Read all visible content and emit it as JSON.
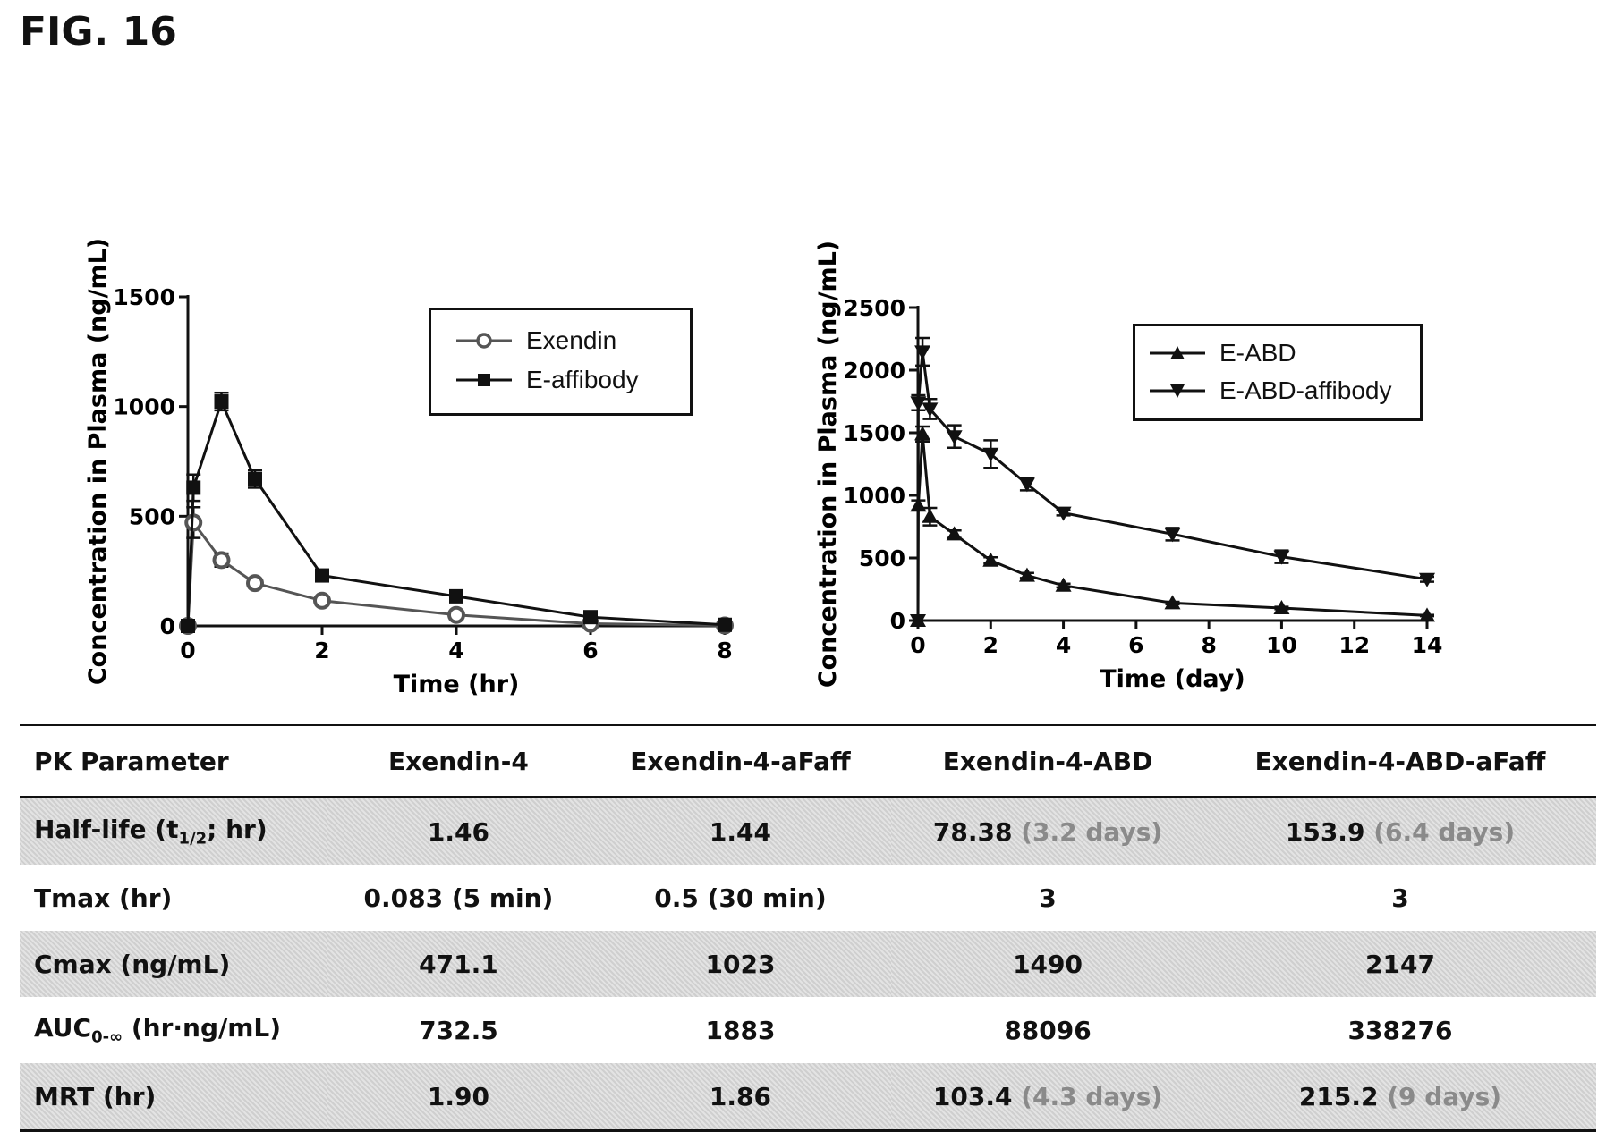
{
  "figure": {
    "title": "FIG. 16"
  },
  "chart_data": [
    {
      "type": "line",
      "xlabel": "Time (hr)",
      "ylabel": "Concentration in Plasma (ng/mL)",
      "xlim": [
        0,
        8
      ],
      "ylim": [
        0,
        1500
      ],
      "xticks": [
        0,
        2,
        4,
        6,
        8
      ],
      "yticks": [
        0,
        500,
        1000,
        1500
      ],
      "legend_placement": "top-right",
      "grid": false,
      "series": [
        {
          "name": "Exendin",
          "marker": "open-circle",
          "color": "#555555",
          "x": [
            0,
            0.083,
            0.5,
            1,
            2,
            4,
            6,
            8
          ],
          "y": [
            0,
            471.1,
            300,
            195,
            115,
            50,
            10,
            2
          ],
          "err": [
            0,
            70,
            30,
            20,
            15,
            10,
            5,
            2
          ]
        },
        {
          "name": "E-affibody",
          "marker": "filled-square",
          "color": "#111111",
          "x": [
            0,
            0.083,
            0.5,
            1,
            2,
            4,
            6,
            8
          ],
          "y": [
            0,
            630,
            1023,
            670,
            230,
            135,
            40,
            5
          ],
          "err": [
            0,
            60,
            40,
            40,
            15,
            10,
            8,
            2
          ]
        }
      ]
    },
    {
      "type": "line",
      "xlabel": "Time (day)",
      "ylabel": "Concentration in Plasma (ng/mL)",
      "xlim": [
        0,
        14
      ],
      "ylim": [
        0,
        2500
      ],
      "xticks": [
        0,
        2,
        4,
        6,
        8,
        10,
        12,
        14
      ],
      "yticks": [
        0,
        500,
        1000,
        1500,
        2000,
        2500
      ],
      "legend_placement": "top-right",
      "grid": false,
      "series": [
        {
          "name": "E-ABD",
          "marker": "filled-triangle-up",
          "color": "#111111",
          "x": [
            0,
            0.01,
            0.125,
            0.33,
            1,
            2,
            3,
            4,
            7,
            10,
            14
          ],
          "y": [
            0,
            920,
            1490,
            830,
            690,
            480,
            360,
            280,
            140,
            100,
            40
          ],
          "err": [
            0,
            40,
            60,
            70,
            30,
            25,
            20,
            15,
            10,
            10,
            5
          ]
        },
        {
          "name": "E-ABD-affibody",
          "marker": "filled-triangle-down",
          "color": "#111111",
          "x": [
            0,
            0.01,
            0.125,
            0.33,
            1,
            2,
            3,
            4,
            7,
            10,
            14
          ],
          "y": [
            0,
            1740,
            2147,
            1690,
            1470,
            1330,
            1090,
            860,
            690,
            510,
            330
          ],
          "err": [
            0,
            60,
            110,
            80,
            90,
            110,
            50,
            20,
            50,
            50,
            20
          ]
        }
      ]
    }
  ],
  "table": {
    "headers": [
      "PK Parameter",
      "Exendin-4",
      "Exendin-4-aFaff",
      "Exendin-4-ABD",
      "Exendin-4-ABD-aFaff"
    ],
    "rows": [
      {
        "label_main": "Half-life  (t",
        "label_sub": "1/2",
        "label_tail": "; hr)",
        "cells": [
          {
            "v": "1.46"
          },
          {
            "v": "1.44"
          },
          {
            "v": "78.38",
            "note": "(3.2 days)"
          },
          {
            "v": "153.9",
            "note": "(6.4 days)"
          }
        ]
      },
      {
        "label_main": "Tmax (hr)",
        "label_sub": "",
        "label_tail": "",
        "cells": [
          {
            "v": "0.083  (5 min)"
          },
          {
            "v": "0.5  (30 min)"
          },
          {
            "v": "3"
          },
          {
            "v": "3"
          }
        ]
      },
      {
        "label_main": "Cmax (ng/mL)",
        "label_sub": "",
        "label_tail": "",
        "cells": [
          {
            "v": "471.1"
          },
          {
            "v": "1023"
          },
          {
            "v": "1490"
          },
          {
            "v": "2147"
          }
        ]
      },
      {
        "label_main": "AUC",
        "label_sub": "0-∞",
        "label_tail": " (hr·ng/mL)",
        "cells": [
          {
            "v": "732.5"
          },
          {
            "v": "1883"
          },
          {
            "v": "88096"
          },
          {
            "v": "338276"
          }
        ]
      },
      {
        "label_main": "MRT (hr)",
        "label_sub": "",
        "label_tail": "",
        "cells": [
          {
            "v": "1.90"
          },
          {
            "v": "1.86"
          },
          {
            "v": "103.4",
            "note": "(4.3 days)"
          },
          {
            "v": "215.2",
            "note": "(9 days)"
          }
        ]
      }
    ]
  }
}
